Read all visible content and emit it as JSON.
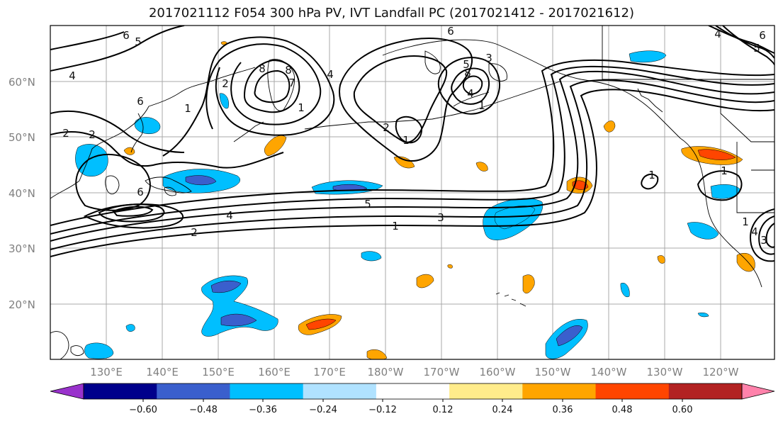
{
  "title": "2017021112 F054 300 hPa PV, IVT Landfall PC (2017021412 - 2017021612)",
  "lat_labels": [
    "60°N",
    "50°N",
    "40°N",
    "30°N",
    "20°N"
  ],
  "lon_labels": [
    "130°E",
    "140°E",
    "150°E",
    "160°E",
    "170°E",
    "180°W",
    "170°W",
    "160°W",
    "150°W",
    "140°W",
    "130°W",
    "120°W"
  ],
  "colorbar": {
    "ticks": [
      "−0.60",
      "−0.48",
      "−0.36",
      "−0.24",
      "−0.12",
      "0.12",
      "0.24",
      "0.36",
      "0.48",
      "0.60"
    ],
    "colors": [
      "#9932cc",
      "#00008b",
      "#3a5fcd",
      "#00bfff",
      "#b0e2ff",
      "#ffffff",
      "#ffec8b",
      "#ffa500",
      "#ff4500",
      "#b22222",
      "#ff82ab"
    ]
  },
  "contour_labels": [
    "6",
    "5",
    "4",
    "6",
    "2",
    "1",
    "8",
    "2",
    "8",
    "4",
    "1",
    "7",
    "2",
    "1",
    "3",
    "8",
    "4",
    "6",
    "1",
    "4",
    "5",
    "6",
    "4",
    "3",
    "2",
    "1",
    "1",
    "4",
    "5",
    "6",
    "2",
    "3",
    "5",
    "1",
    "1"
  ]
}
